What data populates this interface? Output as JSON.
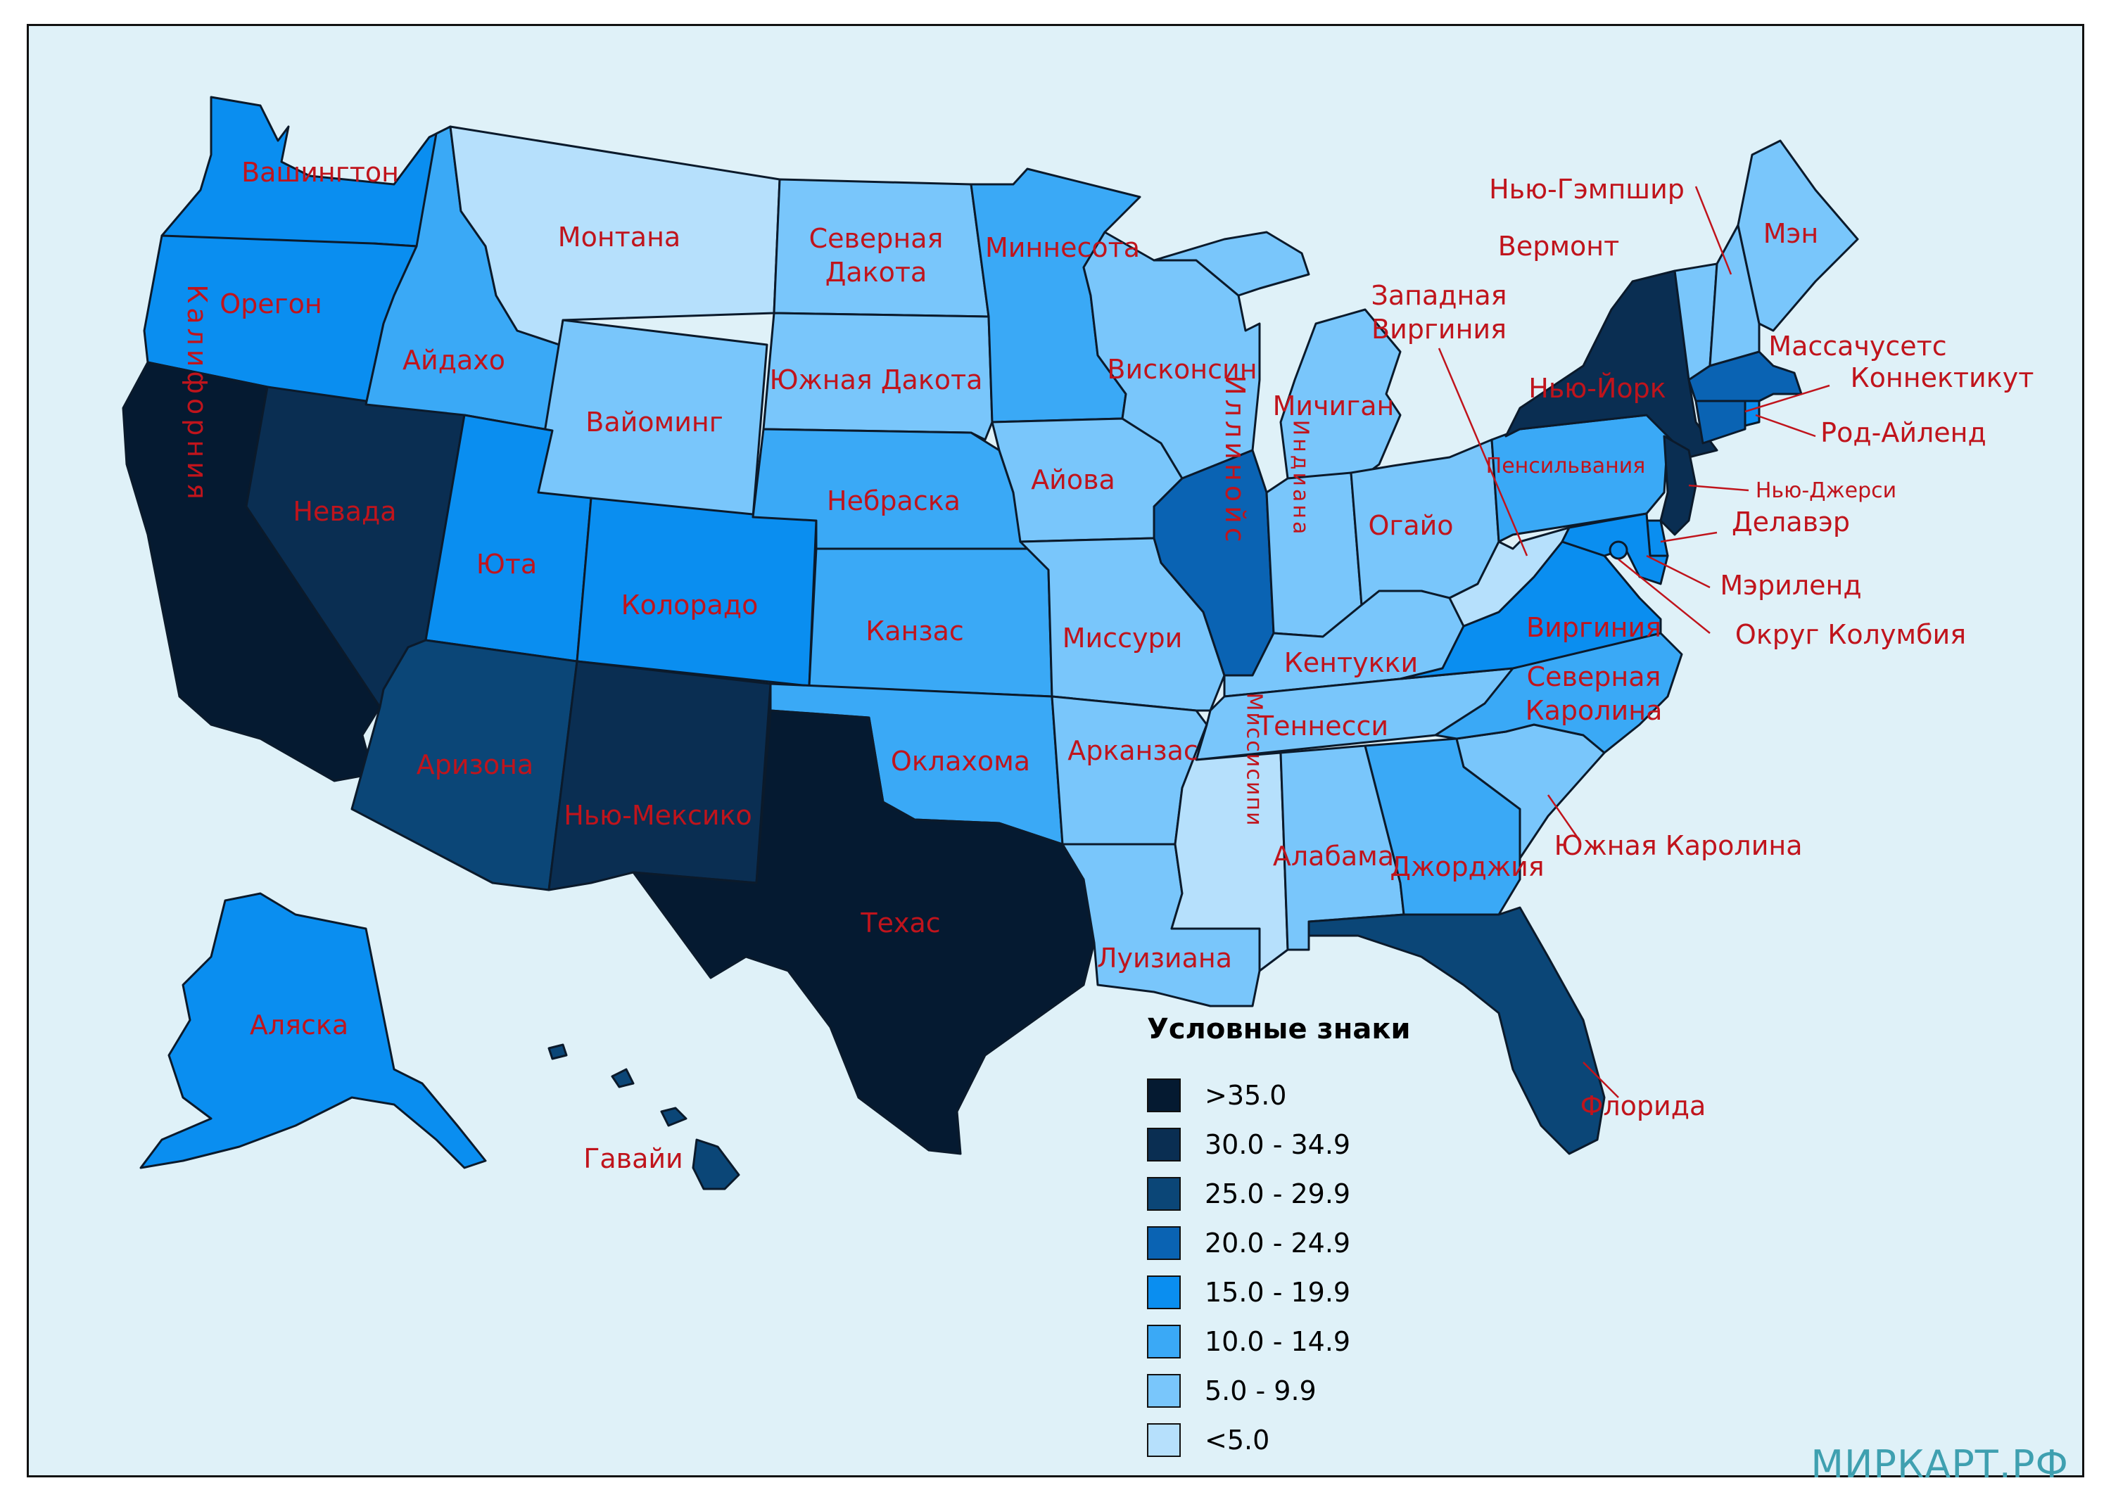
{
  "colors": {
    "gt35": "#051a31",
    "c30": "#0a2e52",
    "c25": "#0b4677",
    "c20": "#0a63b3",
    "c15": "#0a8ef0",
    "c10": "#3aa9f6",
    "c5": "#79c6fb",
    "lt5": "#b6e0fc",
    "water": "#dff1f8",
    "label": "#c0141c"
  },
  "states": {
    "washington": {
      "name": "Вашингтон",
      "cls": "c15"
    },
    "oregon": {
      "name": "Орегон",
      "cls": "c15"
    },
    "california": {
      "name": "Калифорния",
      "cls": "gt35"
    },
    "nevada": {
      "name": "Невада",
      "cls": "c30"
    },
    "idaho": {
      "name": "Айдахо",
      "cls": "c10"
    },
    "montana": {
      "name": "Монтана",
      "cls": "lt5"
    },
    "wyoming": {
      "name": "Вайоминг",
      "cls": "c5"
    },
    "utah": {
      "name": "Юта",
      "cls": "c15"
    },
    "arizona": {
      "name": "Аризона",
      "cls": "c25"
    },
    "colorado": {
      "name": "Колорадо",
      "cls": "c15"
    },
    "new_mexico": {
      "name": "Нью-Мексико",
      "cls": "c30"
    },
    "north_dakota": {
      "name": "Северная Дакота",
      "line1": "Северная",
      "line2": "Дакота",
      "cls": "c5"
    },
    "south_dakota": {
      "name": "Южная Дакота",
      "cls": "c5"
    },
    "nebraska": {
      "name": "Небраска",
      "cls": "c10"
    },
    "kansas": {
      "name": "Канзас",
      "cls": "c10"
    },
    "oklahoma": {
      "name": "Оклахома",
      "cls": "c10"
    },
    "texas": {
      "name": "Техас",
      "cls": "gt35"
    },
    "minnesota": {
      "name": "Миннесота",
      "cls": "c10"
    },
    "iowa": {
      "name": "Айова",
      "cls": "c5"
    },
    "missouri": {
      "name": "Миссури",
      "cls": "c5"
    },
    "arkansas": {
      "name": "Арканзас",
      "cls": "c5"
    },
    "louisiana": {
      "name": "Луизиана",
      "cls": "c5"
    },
    "wisconsin": {
      "name": "Висконсин",
      "cls": "c5"
    },
    "illinois": {
      "name": "Иллинойс",
      "cls": "c20"
    },
    "michigan": {
      "name": "Мичиган",
      "cls": "c5"
    },
    "indiana": {
      "name": "Индиана",
      "cls": "c5"
    },
    "ohio": {
      "name": "Огайо",
      "cls": "c5"
    },
    "kentucky": {
      "name": "Кентукки",
      "cls": "c5"
    },
    "tennessee": {
      "name": "Теннесси",
      "cls": "c5"
    },
    "mississippi": {
      "name": "Миссисипи",
      "cls": "lt5"
    },
    "alabama": {
      "name": "Алабама",
      "cls": "c5"
    },
    "georgia": {
      "name": "Джорджия",
      "cls": "c10"
    },
    "florida": {
      "name": "Флорида",
      "cls": "c25"
    },
    "south_carolina": {
      "name": "Южная Каролина",
      "cls": "c5"
    },
    "north_carolina": {
      "name": "Северная Каролина",
      "line1": "Северная",
      "line2": "Каролина",
      "cls": "c10"
    },
    "virginia": {
      "name": "Виргиния",
      "cls": "c15"
    },
    "west_virginia": {
      "name": "Западная Виргиния",
      "line1": "Западная",
      "line2": "Виргиния",
      "cls": "lt5"
    },
    "pennsylvania": {
      "name": "Пенсильвания",
      "cls": "c10"
    },
    "new_york": {
      "name": "Нью-Йорк",
      "cls": "c30"
    },
    "vermont": {
      "name": "Вермонт",
      "cls": "c5"
    },
    "new_hampshire": {
      "name": "Нью-Гэмпшир",
      "cls": "c5"
    },
    "maine": {
      "name": "Мэн",
      "cls": "c5"
    },
    "massachusetts": {
      "name": "Массачусетс",
      "cls": "c20"
    },
    "connecticut": {
      "name": "Коннектикут",
      "cls": "c20"
    },
    "rhode_island": {
      "name": "Род-Айленд",
      "cls": "c15"
    },
    "new_jersey": {
      "name": "Нью-Джерси",
      "cls": "c30"
    },
    "delaware": {
      "name": "Делавэр",
      "cls": "c15"
    },
    "maryland": {
      "name": "Мэриленд",
      "cls": "c15"
    },
    "dc": {
      "name": "Округ Колумбия",
      "cls": "c15"
    },
    "alaska": {
      "name": "Аляска",
      "cls": "c15"
    },
    "hawaii": {
      "name": "Гавайи",
      "cls": "c25"
    }
  },
  "legend": {
    "title": "Условные знаки",
    "items": [
      {
        "label": ">35.0",
        "cls": "gt35"
      },
      {
        "label": "30.0 - 34.9",
        "cls": "c30"
      },
      {
        "label": "25.0 - 29.9",
        "cls": "c25"
      },
      {
        "label": "20.0 - 24.9",
        "cls": "c20"
      },
      {
        "label": "15.0 - 19.9",
        "cls": "c15"
      },
      {
        "label": "10.0 - 14.9",
        "cls": "c10"
      },
      {
        "label": "5.0 - 9.9",
        "cls": "c5"
      },
      {
        "label": "<5.0",
        "cls": "lt5"
      }
    ]
  },
  "watermark": "МИРКАРТ.РФ"
}
